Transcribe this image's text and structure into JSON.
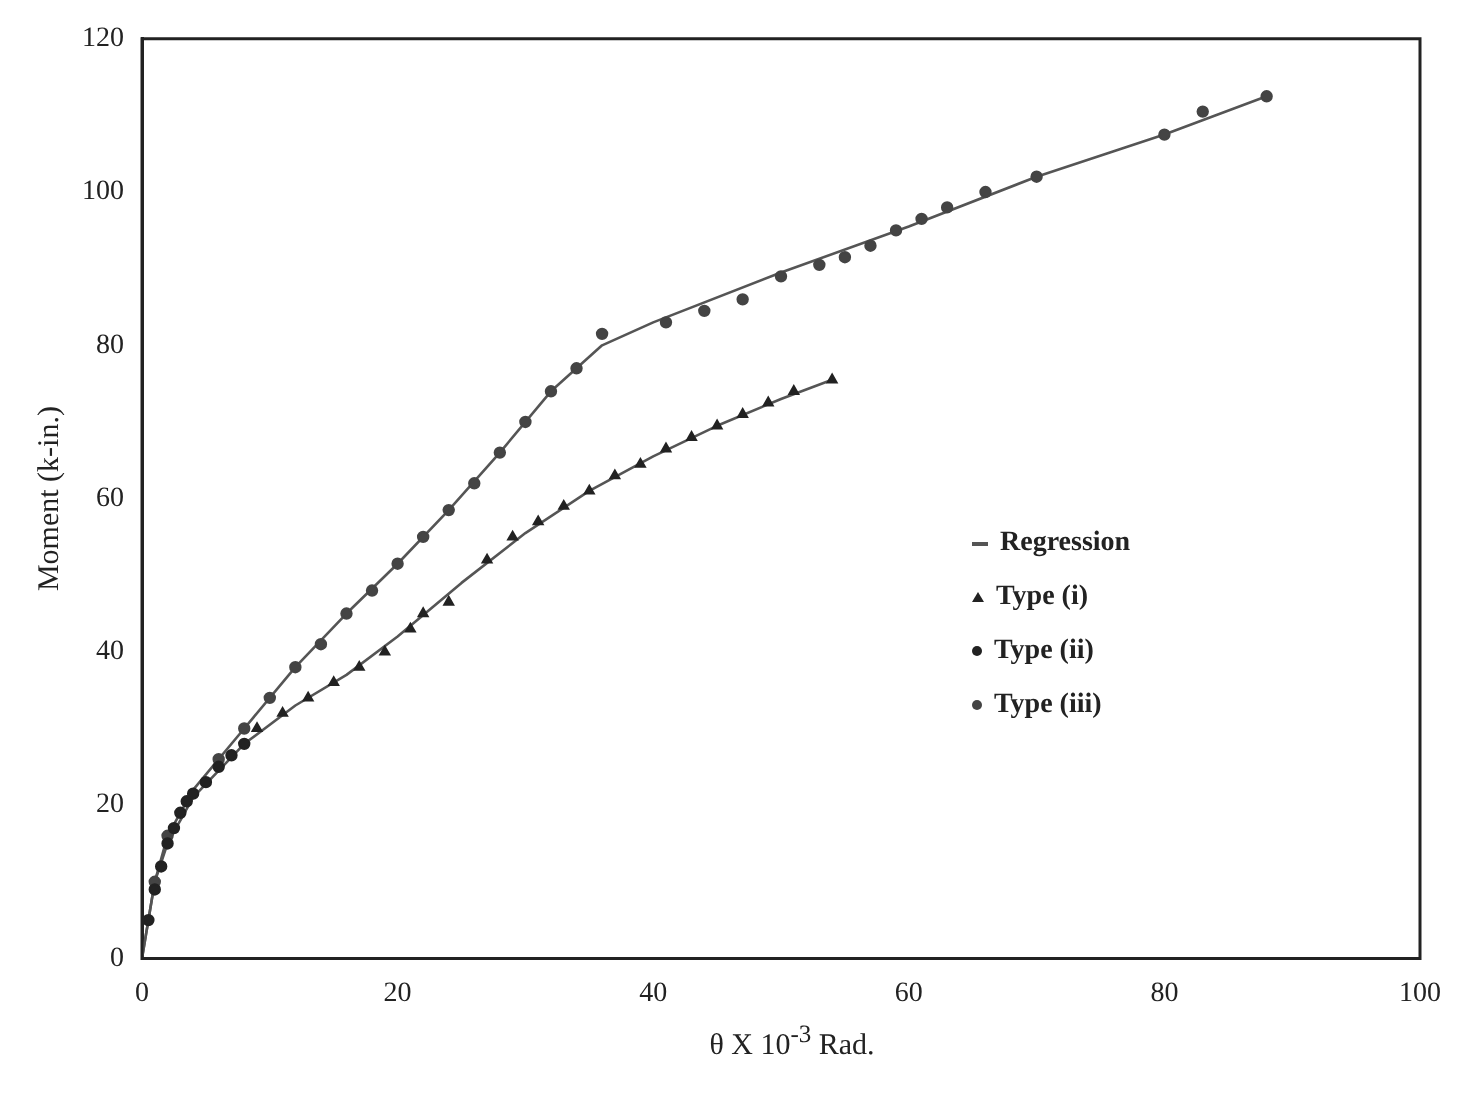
{
  "chart_data": {
    "type": "scatter",
    "xlabel": "θ X 10$^{-3}$ Rad.",
    "ylabel": "Moment (k-in.)",
    "xlim": [
      0,
      100
    ],
    "xticks": [
      0,
      20,
      40,
      60,
      80,
      100
    ],
    "ylim": [
      0,
      120
    ],
    "yticks": [
      0,
      20,
      40,
      60,
      80,
      100,
      120
    ],
    "grid": false,
    "legend": "right",
    "series": [
      {
        "name": "Regression",
        "type": "line",
        "marker": "none",
        "line_style": "solid",
        "color": "#555555",
        "x": [
          0,
          1,
          2,
          4,
          8,
          12,
          16,
          20,
          24,
          28,
          32,
          36,
          40,
          50,
          60,
          70,
          80,
          88
        ],
        "values": [
          0,
          10,
          16,
          22,
          30,
          38,
          45,
          51.5,
          58.5,
          66,
          74,
          80,
          83,
          89.5,
          95.5,
          102,
          107.5,
          112.5
        ]
      },
      {
        "type": "line",
        "marker": "none",
        "line_style": "solid",
        "color": "#555555",
        "x": [
          0,
          1,
          2,
          4,
          8,
          12,
          16,
          20,
          25,
          30,
          35,
          40,
          45,
          50,
          54
        ],
        "values": [
          0,
          10,
          15,
          21,
          28,
          33,
          37,
          42,
          49,
          55.5,
          61,
          65.5,
          69.5,
          73,
          75.5
        ]
      },
      {
        "name": "Type (i)",
        "marker": "triangle",
        "color": "#222222",
        "x": [
          9,
          11,
          13,
          15,
          17,
          19,
          21,
          22,
          24,
          27,
          29,
          31,
          33,
          35,
          37,
          39,
          41,
          43,
          45,
          47,
          49,
          51,
          54
        ],
        "values": [
          30,
          32,
          34,
          36,
          38,
          40,
          43,
          45,
          46.5,
          52,
          55,
          57,
          59,
          61,
          63,
          64.5,
          66.5,
          68,
          69.5,
          71,
          72.5,
          74,
          75.5
        ]
      },
      {
        "name": "Type (ii)",
        "marker": "circle",
        "color": "#222222",
        "x": [
          0.5,
          1,
          1.5,
          2,
          2.5,
          3,
          3.5,
          4,
          5,
          6,
          7,
          8
        ],
        "values": [
          5,
          9,
          12,
          15,
          17,
          19,
          20.5,
          21.5,
          23,
          25,
          26.5,
          28
        ]
      },
      {
        "name": "Type (iii)",
        "marker": "circle",
        "color": "#444444",
        "x": [
          1,
          2,
          3,
          4,
          6,
          8,
          10,
          12,
          14,
          16,
          18,
          20,
          22,
          24,
          26,
          28,
          30,
          32,
          34,
          36,
          41,
          44,
          47,
          50,
          53,
          55,
          57,
          59,
          61,
          63,
          66,
          70,
          80,
          83,
          88
        ],
        "values": [
          10,
          16,
          null,
          null,
          26,
          30,
          34,
          38,
          41,
          45,
          48,
          51.5,
          55,
          58.5,
          62,
          66,
          70,
          74,
          77,
          81.5,
          83,
          84.5,
          86,
          89,
          90.5,
          91.5,
          93,
          95,
          96.5,
          98,
          100,
          102,
          107.5,
          110.5,
          112.5
        ]
      }
    ]
  }
}
